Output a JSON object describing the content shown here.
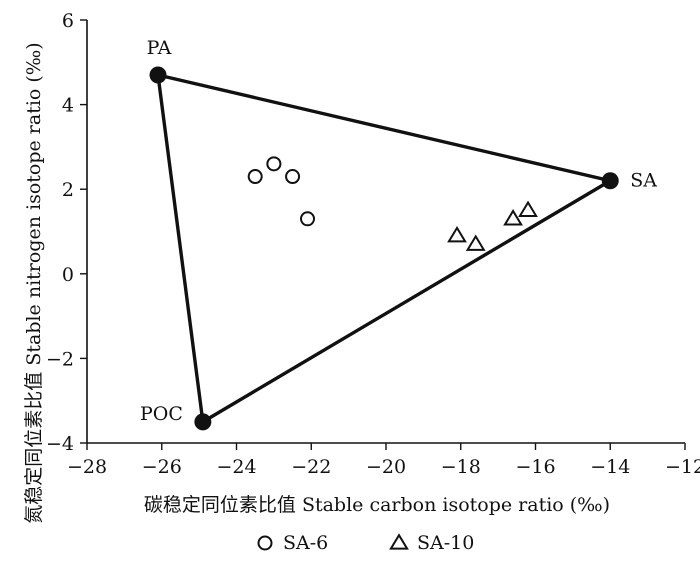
{
  "chart_data": {
    "type": "scatter",
    "xlabel": "碳稳定同位素比值 Stable carbon isotope ratio (‰)",
    "ylabel": "氮稳定同位素比值 Stable nitrogen isotope ratio (‰)",
    "xlim": [
      -28,
      -12
    ],
    "ylim": [
      -4,
      6
    ],
    "xticks": [
      -28,
      -26,
      -24,
      -22,
      -20,
      -18,
      -16,
      -14,
      -12
    ],
    "yticks": [
      -4,
      -2,
      0,
      2,
      4,
      6
    ],
    "xtick_labels": [
      "−28",
      "−26",
      "−24",
      "−22",
      "−20",
      "−18",
      "−16",
      "−14",
      "−12"
    ],
    "ytick_labels": [
      "−4",
      "−2",
      "0",
      "2",
      "4",
      "6"
    ],
    "grid": false,
    "legend_position": "bottom",
    "end_members": [
      {
        "name": "PA",
        "x": -26.1,
        "y": 4.7
      },
      {
        "name": "SA",
        "x": -14.0,
        "y": 2.2
      },
      {
        "name": "POC",
        "x": -24.9,
        "y": -3.5
      }
    ],
    "series": [
      {
        "name": "SA-6",
        "marker": "circle",
        "points": [
          {
            "x": -23.5,
            "y": 2.3
          },
          {
            "x": -23.0,
            "y": 2.6
          },
          {
            "x": -22.5,
            "y": 2.3
          },
          {
            "x": -22.1,
            "y": 1.3
          }
        ]
      },
      {
        "name": "SA-10",
        "marker": "triangle",
        "points": [
          {
            "x": -18.1,
            "y": 0.9
          },
          {
            "x": -17.6,
            "y": 0.7
          },
          {
            "x": -16.6,
            "y": 1.3
          },
          {
            "x": -16.2,
            "y": 1.5
          }
        ]
      }
    ]
  }
}
